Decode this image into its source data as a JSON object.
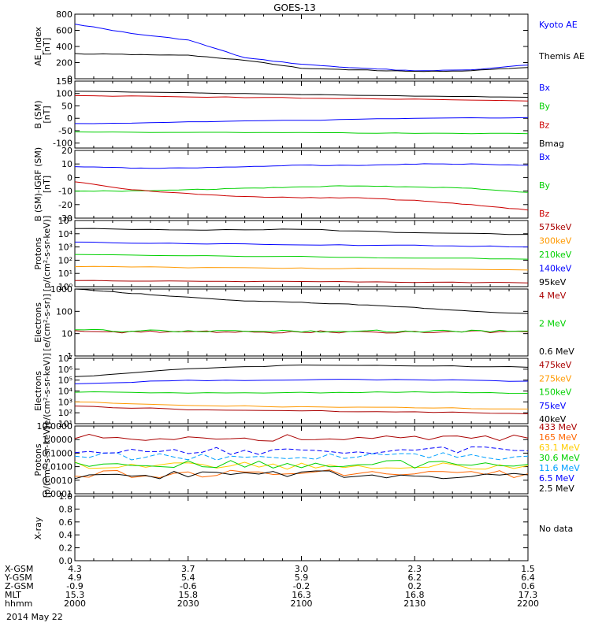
{
  "title": "GOES-13",
  "x_axis": {
    "rows": [
      {
        "label": "X-GSM",
        "values": [
          "4.3",
          "3.7",
          "3.0",
          "2.3",
          "1.5"
        ]
      },
      {
        "label": "Y-GSM",
        "values": [
          "4.9",
          "5.4",
          "5.9",
          "6.2",
          "6.4"
        ]
      },
      {
        "label": "Z-GSM",
        "values": [
          "-0.9",
          "-0.6",
          "-0.2",
          "0.2",
          "0.6"
        ]
      },
      {
        "label": "MLT",
        "values": [
          "15.3",
          "15.8",
          "16.3",
          "16.8",
          "17.3"
        ]
      },
      {
        "label": "hhmm",
        "values": [
          "2000",
          "2030",
          "2100",
          "2130",
          "2200"
        ]
      }
    ],
    "date": "2014 May 22"
  },
  "chart_data": [
    {
      "type": "line",
      "ylabel": [
        "AE_index",
        "[nT]"
      ],
      "ylim": [
        0,
        800
      ],
      "ticks": [
        0,
        200,
        400,
        600,
        800
      ],
      "x": [
        0,
        15,
        30,
        45,
        60,
        75,
        90,
        105,
        120
      ],
      "series": [
        {
          "name": "Kyoto AE",
          "color": "#0000ff",
          "values": [
            680,
            560,
            480,
            260,
            180,
            130,
            100,
            110,
            170
          ]
        },
        {
          "name": "Themis AE",
          "color": "#000000",
          "values": [
            310,
            300,
            290,
            230,
            130,
            110,
            90,
            100,
            140
          ]
        }
      ]
    },
    {
      "type": "line",
      "ylabel": [
        "B (SM)",
        "[nT]"
      ],
      "ylim": [
        -120,
        150
      ],
      "ticks": [
        -100,
        -50,
        0,
        50,
        100,
        150
      ],
      "x": [
        0,
        30,
        60,
        90,
        120
      ],
      "series": [
        {
          "name": "Bx",
          "color": "#0000ff",
          "values": [
            -22,
            -15,
            -8,
            0,
            3
          ]
        },
        {
          "name": "By",
          "color": "#00d000",
          "values": [
            -55,
            -57,
            -58,
            -60,
            -62
          ]
        },
        {
          "name": "Bz",
          "color": "#cc0000",
          "values": [
            92,
            87,
            82,
            77,
            70
          ]
        },
        {
          "name": "Bmag",
          "color": "#000000",
          "values": [
            110,
            103,
            96,
            90,
            85
          ]
        }
      ]
    },
    {
      "type": "line",
      "ylabel": [
        "B (SM)-IGRF (SM)",
        "[nT]"
      ],
      "ylim": [
        -30,
        20
      ],
      "ticks": [
        -30,
        -20,
        -10,
        0,
        10,
        20
      ],
      "x": [
        0,
        15,
        30,
        45,
        60,
        75,
        90,
        105,
        120
      ],
      "series": [
        {
          "name": "Bx",
          "color": "#0000ff",
          "values": [
            8,
            7,
            7,
            8,
            9,
            9,
            10,
            10,
            9
          ]
        },
        {
          "name": "By",
          "color": "#00d000",
          "values": [
            -10,
            -10,
            -9,
            -8,
            -7,
            -6,
            -7,
            -8,
            -11
          ]
        },
        {
          "name": "Bz",
          "color": "#cc0000",
          "values": [
            -3,
            -9,
            -12,
            -14,
            -15,
            -15,
            -17,
            -20,
            -24
          ]
        }
      ]
    },
    {
      "type": "line",
      "log": true,
      "ylabel": [
        "Protons",
        "[p/(cm²-s-sr-keV)]"
      ],
      "ylim": [
        1,
        100000
      ],
      "ticks": [
        1,
        10,
        100,
        1000,
        10000,
        100000
      ],
      "tick_labels": [
        "10⁰",
        "10¹",
        "10²",
        "10³",
        "10⁴",
        "10⁵"
      ],
      "x": [
        0,
        30,
        60,
        90,
        120
      ],
      "series": [
        {
          "name": "575keV",
          "color": "#aa0000",
          "values": [
            3,
            2.6,
            2.4,
            2.2,
            1.9
          ]
        },
        {
          "name": "300keV",
          "color": "#ff9900",
          "values": [
            35,
            28,
            25,
            22,
            18
          ]
        },
        {
          "name": "210keV",
          "color": "#00d000",
          "values": [
            260,
            210,
            180,
            150,
            120
          ]
        },
        {
          "name": "140keV",
          "color": "#0000ff",
          "values": [
            2300,
            1800,
            1500,
            1300,
            1000
          ]
        },
        {
          "name": "95keV",
          "color": "#000000",
          "values": [
            25000,
            18000,
            22000,
            12000,
            9000
          ]
        }
      ]
    },
    {
      "type": "line",
      "log": true,
      "ylabel": [
        "Electrons",
        "[e/(cm²-s-sr)]"
      ],
      "ylim": [
        1,
        1000
      ],
      "ticks": [
        1,
        10,
        100,
        1000
      ],
      "tick_labels": [
        "1",
        "10",
        "100",
        "1000"
      ],
      "x": [
        0,
        15,
        30,
        45,
        60,
        75,
        90,
        105,
        120
      ],
      "series": [
        {
          "name": "4 MeV",
          "color": "#aa0000",
          "values": [
            12,
            12,
            12,
            12,
            12,
            12,
            12,
            12,
            12
          ]
        },
        {
          "name": "2 MeV",
          "color": "#00d000",
          "values": [
            14,
            13,
            13,
            13,
            13,
            13,
            13,
            13,
            13
          ]
        },
        {
          "name": "0.6 MeV",
          "color": "#000000",
          "values": [
            1000,
            650,
            420,
            300,
            250,
            200,
            150,
            100,
            80
          ]
        }
      ]
    },
    {
      "type": "line",
      "log": true,
      "ylabel": [
        "Electrons",
        "[e/(cm²-s-sr-keV)]"
      ],
      "ylim": [
        10,
        10000000
      ],
      "ticks": [
        10,
        100,
        1000,
        10000,
        100000,
        1000000,
        10000000
      ],
      "tick_labels": [
        "10¹",
        "10²",
        "10³",
        "10⁴",
        "10⁵",
        "10⁶",
        "10⁷"
      ],
      "x": [
        0,
        30,
        60,
        90,
        120
      ],
      "series": [
        {
          "name": "475keV",
          "color": "#aa0000",
          "values": [
            400,
            200,
            150,
            120,
            80
          ]
        },
        {
          "name": "275keV",
          "color": "#ff9900",
          "values": [
            1000,
            450,
            350,
            300,
            220
          ]
        },
        {
          "name": "150keV",
          "color": "#00d000",
          "values": [
            8000,
            6500,
            7000,
            8000,
            6000
          ]
        },
        {
          "name": "75keV",
          "color": "#0000ff",
          "values": [
            50000,
            90000,
            110000,
            110000,
            80000
          ]
        },
        {
          "name": "40keV",
          "color": "#000000",
          "values": [
            200000,
            1100000,
            2500000,
            2200000,
            1500000
          ]
        }
      ]
    },
    {
      "type": "line",
      "log": true,
      "ylabel": [
        "Protons",
        "[p/(cm²-s-sr-keV)]"
      ],
      "ylim": [
        0.0001,
        10
      ],
      "ticks": [
        0.0001,
        0.001,
        0.01,
        0.1,
        1,
        10
      ],
      "tick_labels": [
        "0.0001",
        "0.0010",
        "0.0100",
        "0.1000",
        "1.0000",
        "10.0000"
      ],
      "x": [
        0,
        30,
        60,
        90,
        120
      ],
      "series": [
        {
          "name": "433 MeV",
          "color": "#aa0000",
          "values": [
            1.3,
            1.3,
            1.3,
            1.3,
            1.3
          ]
        },
        {
          "name": "165 MeV",
          "color": "#ff6600",
          "values": [
            0.003,
            0.003,
            0.003,
            0.003,
            0.003
          ]
        },
        {
          "name": "63.1 MeV",
          "color": "#ffcc00",
          "values": [
            0.012,
            0.012,
            0.012,
            0.012,
            0.012
          ]
        },
        {
          "name": "30.6 MeV",
          "color": "#00d000",
          "values": [
            0.015,
            0.015,
            0.015,
            0.015,
            0.015
          ]
        },
        {
          "name": "11.6 MeV",
          "color": "#00a0ff",
          "values": [
            0.06,
            0.06,
            0.06,
            0.06,
            0.06
          ]
        },
        {
          "name": "6.5 MeV",
          "color": "#0000ff",
          "values": [
            0.15,
            0.15,
            0.15,
            0.15,
            0.15
          ]
        },
        {
          "name": "2.5 MeV",
          "color": "#000000",
          "values": [
            0.0025,
            0.0025,
            0.0025,
            0.0025,
            0.0025
          ]
        }
      ]
    },
    {
      "type": "line",
      "ylabel": [
        "X-ray"
      ],
      "ylim": [
        0,
        1
      ],
      "ticks": [
        0,
        0.2,
        0.4,
        0.6,
        0.8,
        1.0
      ],
      "tick_labels": [
        "0.0",
        "0.2",
        "0.4",
        "0.6",
        "0.8",
        "1.0"
      ],
      "x": [],
      "series": [],
      "note": "No data"
    }
  ]
}
